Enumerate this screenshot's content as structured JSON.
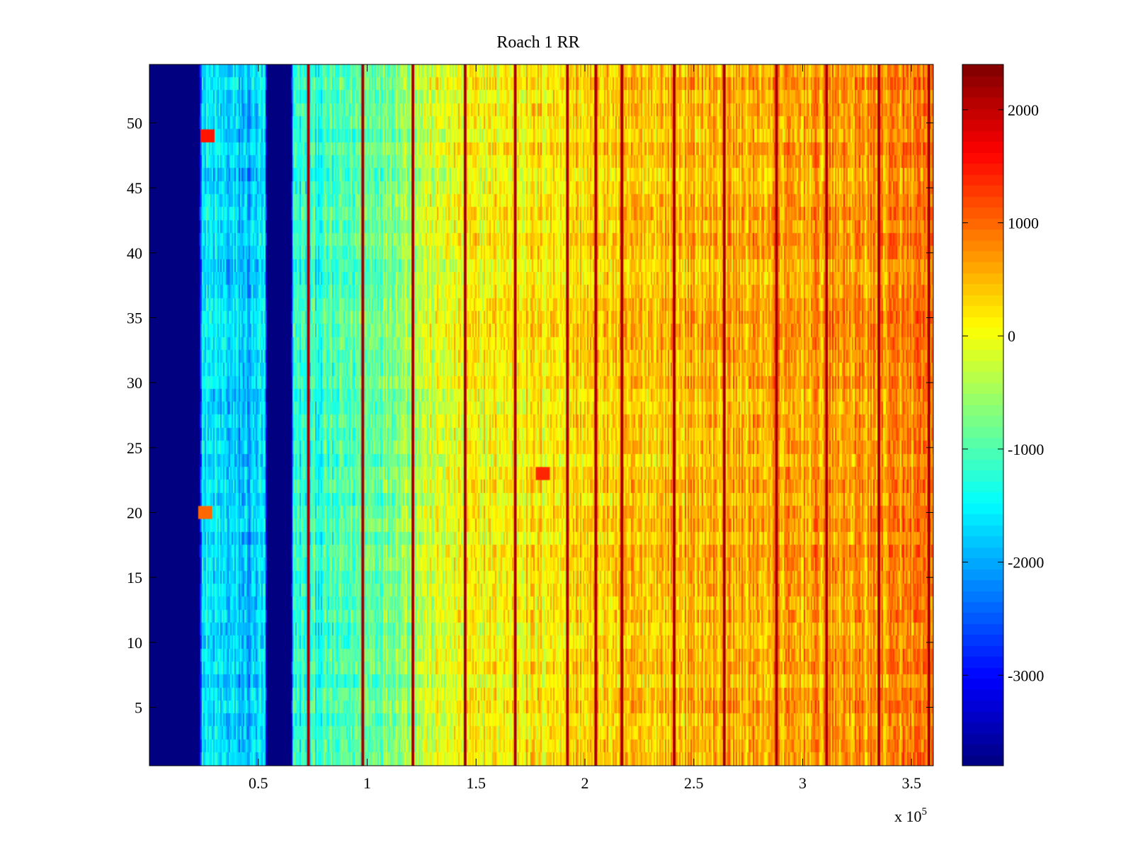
{
  "chart_data": {
    "type": "heatmap",
    "title": "Roach 1 RR",
    "xlabel": "",
    "ylabel": "",
    "x_multiplier_label": "x 10",
    "x_multiplier_exponent": "5",
    "x_range": [
      0,
      360000
    ],
    "y_range": [
      0.5,
      54.5
    ],
    "x_ticks": [
      {
        "value": 50000,
        "label": "0.5"
      },
      {
        "value": 100000,
        "label": "1"
      },
      {
        "value": 150000,
        "label": "1.5"
      },
      {
        "value": 200000,
        "label": "2"
      },
      {
        "value": 250000,
        "label": "2.5"
      },
      {
        "value": 300000,
        "label": "3"
      },
      {
        "value": 350000,
        "label": "3.5"
      }
    ],
    "y_ticks": [
      {
        "value": 5,
        "label": "5"
      },
      {
        "value": 10,
        "label": "10"
      },
      {
        "value": 15,
        "label": "15"
      },
      {
        "value": 20,
        "label": "20"
      },
      {
        "value": 25,
        "label": "25"
      },
      {
        "value": 30,
        "label": "30"
      },
      {
        "value": 35,
        "label": "35"
      },
      {
        "value": 40,
        "label": "40"
      },
      {
        "value": 45,
        "label": "45"
      },
      {
        "value": 50,
        "label": "50"
      }
    ],
    "colormap": "jet",
    "color_range": [
      -3800,
      2400
    ],
    "colorbar_ticks": [
      {
        "value": 2000,
        "label": "2000"
      },
      {
        "value": 1000,
        "label": "1000"
      },
      {
        "value": 0,
        "label": "0"
      },
      {
        "value": -1000,
        "label": "-1000"
      },
      {
        "value": -2000,
        "label": "-2000"
      },
      {
        "value": -3000,
        "label": "-3000"
      }
    ],
    "approx_profile": {
      "description_points_x": [
        0,
        23000,
        24000,
        45000,
        50000,
        53000,
        54000,
        65000,
        66000,
        80000,
        100000,
        130000,
        160000,
        200000,
        250000,
        300000,
        360000
      ],
      "mean_values": [
        -3800,
        -3800,
        -1600,
        -1900,
        -1700,
        -1700,
        -3800,
        -3800,
        -1300,
        -1200,
        -900,
        -200,
        100,
        300,
        500,
        600,
        800
      ]
    },
    "dark_stripes_x": [
      73000,
      98000,
      121000,
      145000,
      168000,
      192000,
      205000,
      217000,
      241000,
      264000,
      288000,
      311000,
      335000,
      358000
    ],
    "hot_spots": [
      {
        "x": 26000,
        "y": 49,
        "value": 1500
      },
      {
        "x": 25000,
        "y": 20,
        "value": 1000
      },
      {
        "x": 180000,
        "y": 23,
        "value": 1400
      }
    ],
    "grid": false,
    "legend": "colorbar-right"
  }
}
